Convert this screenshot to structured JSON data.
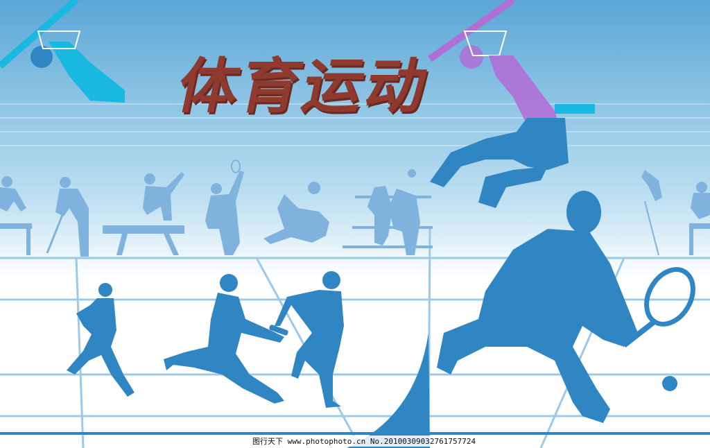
{
  "poster": {
    "title": "体育运动",
    "watermark": "图行天下 www.photophoto.cn No.20100309032761757724"
  },
  "colors": {
    "sky_top": "#5aa7d6",
    "sky_bottom": "#ffffff",
    "silhouette": "#2f86c2",
    "silhouette_light": "#7fb3dd",
    "accent_cyan": "#19b8e0",
    "accent_magenta": "#b06fd6",
    "title": "#8f3a2e",
    "lines": "#9cc9ea"
  },
  "icons": [
    "basketball-dunk-figure",
    "tennis-player-figure",
    "runner-figures",
    "athlete-silhouette-row"
  ]
}
